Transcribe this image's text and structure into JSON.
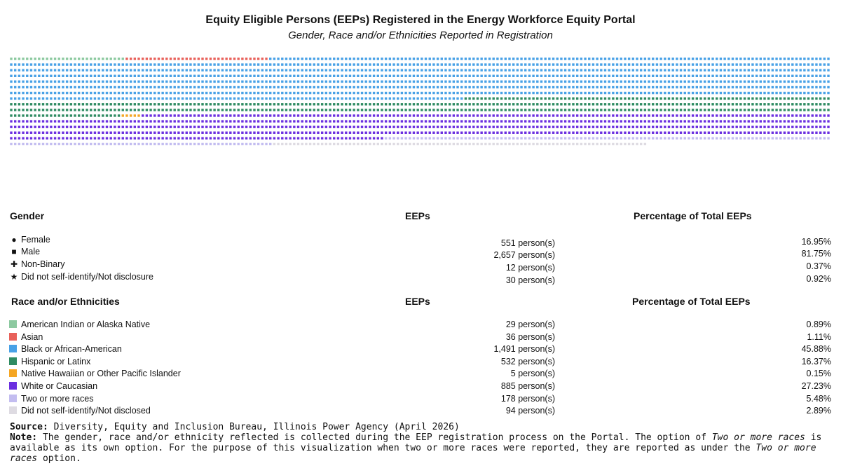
{
  "title": "Equity Eligible Persons (EEPs) Registered in the Energy Workforce Equity Portal",
  "subtitle": "Gender, Race and/or Ethnicities Reported in Registration",
  "gender_table": {
    "header_label": "Gender",
    "header_eeps": "EEPs",
    "header_pct": "Percentage of Total EEPs",
    "rows": [
      {
        "label": "Female",
        "symbol": "●",
        "symbol_name": "circle-icon",
        "eeps": "551 person(s)",
        "pct": "16.95%"
      },
      {
        "label": "Male",
        "symbol": "■",
        "symbol_name": "square-icon",
        "eeps": "2,657 person(s)",
        "pct": "81.75%"
      },
      {
        "label": "Non-Binary",
        "symbol": "✚",
        "symbol_name": "plus-icon",
        "eeps": "12 person(s)",
        "pct": "0.37%"
      },
      {
        "label": "Did not self-identify/Not disclosure",
        "symbol": "★",
        "symbol_name": "star-icon",
        "eeps": "30 person(s)",
        "pct": "0.92%"
      }
    ]
  },
  "race_table": {
    "header_label": "Race and/or Ethnicities",
    "header_eeps": "EEPs",
    "header_pct": "Percentage of Total EEPs",
    "rows": [
      {
        "label": "American Indian or Alaska Native",
        "color": "#8cc9a0",
        "eeps": "29 person(s)",
        "pct": "0.89%"
      },
      {
        "label": "Asian",
        "color": "#e8615a",
        "eeps": "36 person(s)",
        "pct": "1.11%"
      },
      {
        "label": "Black or African-American",
        "color": "#48a1e6",
        "eeps": "1,491 person(s)",
        "pct": "45.88%"
      },
      {
        "label": "Hispanic or Latinx",
        "color": "#2e8b62",
        "eeps": "532 person(s)",
        "pct": "16.37%"
      },
      {
        "label": "Native Hawaiian or Other Pacific Islander",
        "color": "#f5a623",
        "eeps": "5 person(s)",
        "pct": "0.15%"
      },
      {
        "label": "White or Caucasian",
        "color": "#6b2fe0",
        "eeps": "885 person(s)",
        "pct": "27.23%"
      },
      {
        "label": "Two or more races",
        "color": "#c3bdf0",
        "eeps": "178 person(s)",
        "pct": "5.48%"
      },
      {
        "label": "Did not self-identify/Not disclosed",
        "color": "#dedbe2",
        "eeps": "94 person(s)",
        "pct": "2.89%"
      }
    ]
  },
  "footer": {
    "source_label": "Source:",
    "source_text": " Diversity, Equity and Inclusion Bureau, Illinois Power Agency (April 2026)",
    "note_label": "Note:",
    "note_text_1": " The gender, race and/or ethnicity reflected is collected during the EEP registration process on the Portal. The option of ",
    "note_em_1": "Two or more races",
    "note_text_2": " is available as its own option. For the purpose of this visualization when two or more races were reported, they are reported as under the ",
    "note_em_2": "Two or more races",
    "note_text_3": " option."
  },
  "chart_data": {
    "type": "waffle",
    "title": "Equity Eligible Persons (EEPs) Registered in the Energy Workforce Equity Portal",
    "subtitle": "Gender, Race and/or Ethnicities Reported in Registration",
    "unit": "person",
    "total": 3250,
    "order": "row-major, left to right, top to bottom",
    "series": [
      {
        "name": "American Indian or Alaska Native",
        "color": "#8cc9a0",
        "value": 29
      },
      {
        "name": "Asian",
        "color": "#e8615a",
        "value": 36
      },
      {
        "name": "Black or African-American",
        "color": "#48a1e6",
        "value": 1491
      },
      {
        "name": "Hispanic or Latinx",
        "color": "#2e8b62",
        "value": 532
      },
      {
        "name": "Native Hawaiian or Other Pacific Islander",
        "color": "#f5a623",
        "value": 5
      },
      {
        "name": "White or Caucasian",
        "color": "#6b2fe0",
        "value": 885
      },
      {
        "name": "Two or more races",
        "color": "#c3bdf0",
        "value": 178
      },
      {
        "name": "Did not self-identify/Not disclosed",
        "color": "#dedbe2",
        "value": 94
      }
    ],
    "gender_symbols": [
      {
        "name": "Female",
        "symbol": "circle",
        "value": 551
      },
      {
        "name": "Male",
        "symbol": "square",
        "value": 2657
      },
      {
        "name": "Non-Binary",
        "symbol": "plus",
        "value": 12
      },
      {
        "name": "Did not self-identify/Not disclosure",
        "symbol": "star",
        "value": 30
      }
    ]
  }
}
